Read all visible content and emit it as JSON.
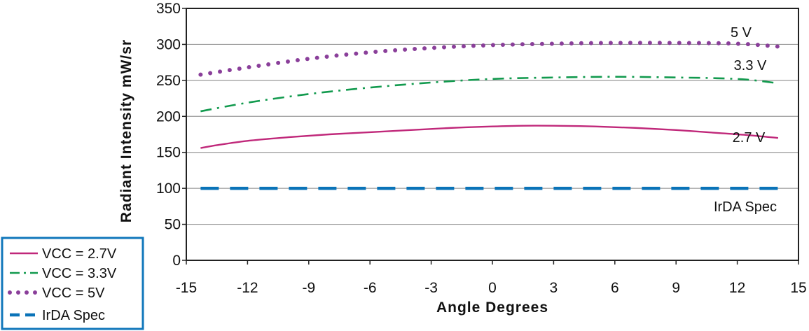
{
  "chart_data": {
    "type": "line",
    "title": "",
    "xlabel": "Angle Degrees",
    "ylabel": "Radiant Intensity mW/sr",
    "xlim": [
      -15,
      15
    ],
    "ylim": [
      0,
      350
    ],
    "xticks": [
      -15,
      -12,
      -9,
      -6,
      -3,
      0,
      3,
      6,
      9,
      12,
      15
    ],
    "yticks": [
      0,
      50,
      100,
      150,
      200,
      250,
      300,
      350
    ],
    "grid": "horizontal",
    "legend_position": "bottom-left",
    "series": [
      {
        "name": "VCC = 2.7V",
        "label": "2.7 V",
        "color": "#c0287a",
        "style": "solid",
        "x": [
          -14.3,
          -13.5,
          -12,
          -10,
          -8,
          -6,
          -4,
          -2,
          0,
          1.5,
          3,
          5,
          7,
          9,
          11,
          12.5,
          14
        ],
        "y": [
          156,
          160,
          166,
          171,
          175,
          178,
          181,
          184,
          186,
          187,
          187,
          186,
          184,
          181,
          177,
          174,
          170
        ]
      },
      {
        "name": "VCC = 3.3V",
        "label": "3.3 V",
        "color": "#129a4e",
        "style": "dashdot",
        "x": [
          -14.3,
          -12,
          -9,
          -6,
          -3,
          0,
          3,
          6,
          9,
          11,
          12.5,
          14
        ],
        "y": [
          207,
          219,
          231,
          240,
          247,
          252,
          254,
          255,
          254,
          253,
          251,
          246
        ]
      },
      {
        "name": "VCC = 5V",
        "label": "5 V",
        "color": "#8a3f9a",
        "style": "dotted",
        "x": [
          -14.3,
          -12,
          -9,
          -6,
          -3,
          0,
          3,
          6,
          9,
          12,
          14
        ],
        "y": [
          258,
          268,
          280,
          289,
          295,
          299,
          301,
          302,
          302,
          301,
          297
        ]
      },
      {
        "name": "IrDA Spec",
        "label": "IrDA Spec",
        "color": "#0a73b8",
        "style": "dashed",
        "x": [
          -14.3,
          14.3
        ],
        "y": [
          100,
          100
        ]
      }
    ]
  }
}
